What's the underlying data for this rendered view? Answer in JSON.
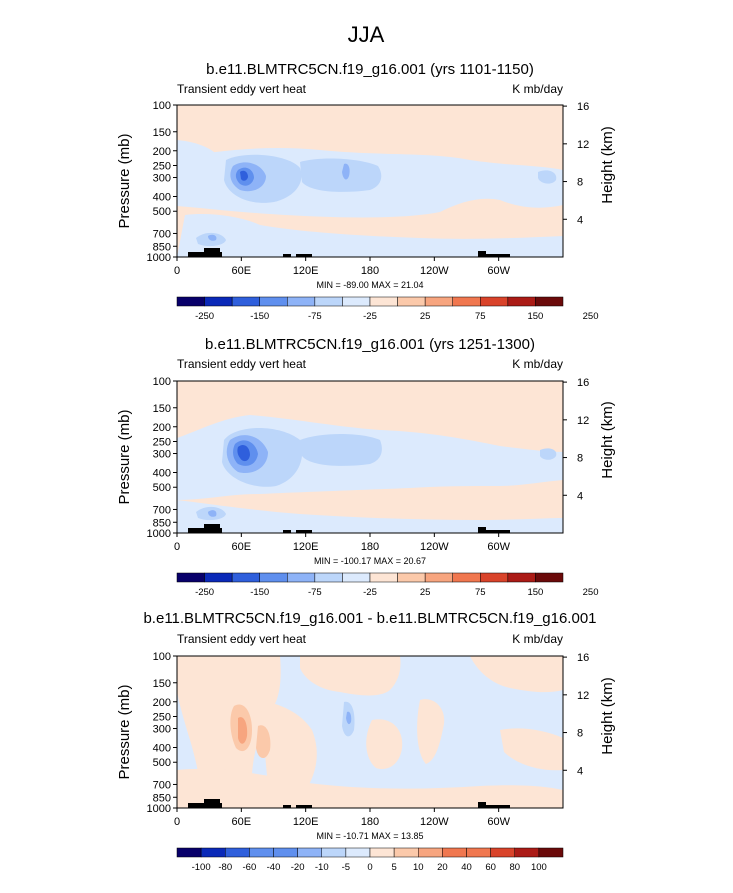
{
  "figure": {
    "title": "JJA"
  },
  "colors": {
    "palette": [
      "#08006a",
      "#0a29b8",
      "#2f5fdc",
      "#5f8fee",
      "#8eb3f7",
      "#bcd6fa",
      "#dceafd",
      "#fde5d5",
      "#fbc9aa",
      "#f7a57f",
      "#f0774f",
      "#d9432a",
      "#ab1b16",
      "#6b0a0a"
    ],
    "diff_palette": [
      "#08006a",
      "#0a29b8",
      "#2f5fdc",
      "#5f8fee",
      "#8eb3f7",
      "#bcd6fa",
      "#dceafd",
      "#fde5d5",
      "#fbc9aa",
      "#f7a57f",
      "#f0774f",
      "#d9432a",
      "#ab1b16",
      "#6b0a0a"
    ]
  },
  "chart_data": [
    {
      "type": "heatmap",
      "title": "b.e11.BLMTRC5CN.f19_g16.001 (yrs 1101-1150)",
      "left_label": "Transient eddy vert heat",
      "right_label": "K mb/day",
      "ylabel": "Pressure (mb)",
      "y2label": "Height (km)",
      "pressure_ticks": [
        "100",
        "150",
        "200",
        "250",
        "300",
        "400",
        "500",
        "700",
        "850",
        "1000"
      ],
      "height_ticks": [
        "16",
        "12",
        "8",
        "4"
      ],
      "lon_ticks": [
        "0",
        "60E",
        "120E",
        "180",
        "120W",
        "60W"
      ],
      "stats": "MIN = -89.00  MAX = 21.04",
      "colorbar_levels": [
        "-250",
        "-150",
        "-75",
        "-25",
        "25",
        "75",
        "150",
        "250"
      ],
      "min": -89.0,
      "max": 21.04
    },
    {
      "type": "heatmap",
      "title": "b.e11.BLMTRC5CN.f19_g16.001 (yrs 1251-1300)",
      "left_label": "Transient eddy vert heat",
      "right_label": "K mb/day",
      "ylabel": "Pressure (mb)",
      "y2label": "Height (km)",
      "pressure_ticks": [
        "100",
        "150",
        "200",
        "250",
        "300",
        "400",
        "500",
        "700",
        "850",
        "1000"
      ],
      "height_ticks": [
        "16",
        "12",
        "8",
        "4"
      ],
      "lon_ticks": [
        "0",
        "60E",
        "120E",
        "180",
        "120W",
        "60W"
      ],
      "stats": "MIN = -100.17  MAX = 20.67",
      "colorbar_levels": [
        "-250",
        "-150",
        "-75",
        "-25",
        "25",
        "75",
        "150",
        "250"
      ],
      "min": -100.17,
      "max": 20.67
    },
    {
      "type": "heatmap",
      "title": "b.e11.BLMTRC5CN.f19_g16.001 - b.e11.BLMTRC5CN.f19_g16.001",
      "left_label": "Transient eddy vert heat",
      "right_label": "K mb/day",
      "ylabel": "Pressure (mb)",
      "y2label": "Height (km)",
      "pressure_ticks": [
        "100",
        "150",
        "200",
        "250",
        "300",
        "400",
        "500",
        "700",
        "850",
        "1000"
      ],
      "height_ticks": [
        "16",
        "12",
        "8",
        "4"
      ],
      "lon_ticks": [
        "0",
        "60E",
        "120E",
        "180",
        "120W",
        "60W"
      ],
      "stats": "MIN = -10.71  MAX = 13.85",
      "colorbar_levels": [
        "-100",
        "-80",
        "-60",
        "-40",
        "-20",
        "-10",
        "-5",
        "0",
        "5",
        "10",
        "20",
        "40",
        "60",
        "80",
        "100"
      ],
      "min": -10.71,
      "max": 13.85
    }
  ]
}
